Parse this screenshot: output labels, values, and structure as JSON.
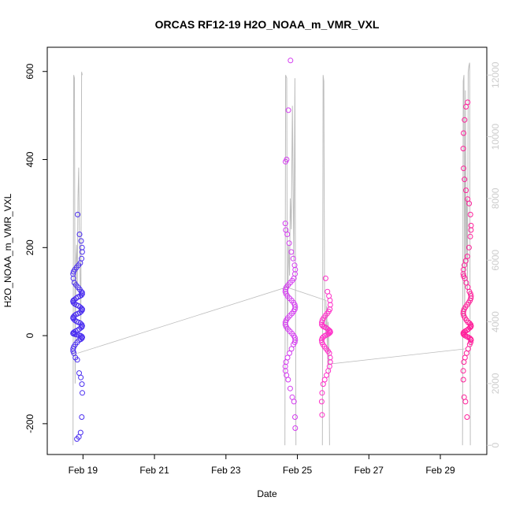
{
  "chart_data": {
    "type": "scatter",
    "title": "ORCAS RF12-19 H2O_NOAA_m_VMR_VXL",
    "xlabel": "Date",
    "ylabel": "H2O_NOAA_m_VMR_VXL",
    "x_tick_labels": [
      "Feb 19",
      "Feb 21",
      "Feb 23",
      "Feb 25",
      "Feb 27",
      "Feb 29"
    ],
    "x_ticks_days": [
      19,
      21,
      23,
      25,
      27,
      29
    ],
    "xlim_days": [
      18.0,
      30.3
    ],
    "ylim": [
      -270,
      655
    ],
    "y_ticks": [
      -200,
      0,
      200,
      400,
      600
    ],
    "y2_ticks": [
      0,
      2000,
      4000,
      6000,
      8000,
      10000,
      12000
    ],
    "y2lim": [
      -300,
      12900
    ],
    "grid": false,
    "colors": {
      "flight1": "#4b2ff0",
      "flight2": "#d43cf0",
      "flight3": "#ff2fc8",
      "flight4": "#ff1f9a",
      "altitude_line": "#bdbdbd",
      "axis": "#000000",
      "right_axis": "#cccccc"
    },
    "flights": [
      {
        "date_center": 18.85,
        "spread": 0.13,
        "color": "#4b2ff0",
        "points": [
          275,
          230,
          215,
          200,
          190,
          175,
          165,
          160,
          155,
          150,
          145,
          140,
          130,
          120,
          115,
          110,
          105,
          100,
          98,
          95,
          92,
          90,
          88,
          85,
          82,
          80,
          78,
          75,
          72,
          70,
          68,
          65,
          62,
          60,
          58,
          55,
          52,
          50,
          48,
          45,
          42,
          40,
          38,
          35,
          32,
          30,
          28,
          25,
          22,
          20,
          18,
          15,
          12,
          10,
          8,
          6,
          5,
          4,
          3,
          2,
          1,
          0,
          -2,
          -4,
          -6,
          -8,
          -10,
          -15,
          -20,
          -25,
          -30,
          -35,
          -40,
          -50,
          -55,
          -85,
          -95,
          -110,
          -130,
          -185,
          -220,
          -230,
          -235
        ],
        "altitude_x": [
          18.72,
          18.74,
          18.76,
          18.78,
          18.8,
          18.82,
          18.84,
          18.86,
          18.88,
          18.9,
          18.92,
          18.94,
          18.96,
          18.98
        ],
        "altitude_y": [
          0,
          12000,
          11900,
          2000,
          6000,
          6500,
          5000,
          8000,
          9000,
          7000,
          5500,
          4000,
          12100,
          12000
        ]
      },
      {
        "date_center": 24.8,
        "spread": 0.14,
        "color": "#d43cf0",
        "points": [
          625,
          512,
          400,
          395,
          255,
          240,
          230,
          210,
          190,
          175,
          160,
          150,
          140,
          130,
          125,
          120,
          115,
          110,
          105,
          100,
          95,
          90,
          85,
          80,
          75,
          70,
          65,
          60,
          55,
          50,
          45,
          40,
          35,
          30,
          25,
          20,
          15,
          10,
          5,
          0,
          -5,
          -10,
          -15,
          -20,
          -30,
          -40,
          -50,
          -60,
          -70,
          -80,
          -90,
          -100,
          -120,
          -140,
          -150,
          -185,
          -210
        ],
        "altitude_x": [
          24.65,
          24.67,
          24.7,
          24.72,
          24.75,
          24.78,
          24.8,
          24.83,
          24.86,
          24.9,
          24.93,
          24.96
        ],
        "altitude_y": [
          0,
          12000,
          11900,
          3000,
          6500,
          5500,
          8000,
          7000,
          11000,
          6000,
          11900,
          0
        ]
      },
      {
        "date_center": 25.8,
        "spread": 0.12,
        "color": "#ff2fc8",
        "points": [
          130,
          100,
          90,
          80,
          70,
          60,
          55,
          50,
          45,
          40,
          35,
          30,
          25,
          22,
          20,
          18,
          15,
          12,
          10,
          8,
          6,
          4,
          2,
          0,
          -3,
          -6,
          -10,
          -15,
          -20,
          -25,
          -30,
          -35,
          -40,
          -50,
          -60,
          -70,
          -80,
          -90,
          -100,
          -110,
          -130,
          -150,
          -180
        ],
        "altitude_x": [
          25.7,
          25.72,
          25.74,
          25.76,
          25.78,
          25.8,
          25.82,
          25.84,
          25.86,
          25.88,
          25.9
        ],
        "altitude_y": [
          0,
          12000,
          11800,
          5000,
          4000,
          3500,
          4500,
          3000,
          4000,
          3200,
          0
        ]
      },
      {
        "date_center": 29.75,
        "spread": 0.11,
        "color": "#ff1f9a",
        "points": [
          530,
          520,
          490,
          460,
          425,
          380,
          355,
          330,
          310,
          300,
          275,
          250,
          240,
          225,
          200,
          180,
          170,
          160,
          150,
          140,
          135,
          130,
          120,
          110,
          100,
          95,
          90,
          85,
          80,
          75,
          70,
          65,
          60,
          55,
          50,
          45,
          40,
          35,
          30,
          28,
          25,
          22,
          20,
          18,
          15,
          12,
          10,
          8,
          6,
          4,
          2,
          0,
          -2,
          -4,
          -6,
          -8,
          -10,
          -15,
          -20,
          -30,
          -40,
          -50,
          -60,
          -80,
          -100,
          -140,
          -150,
          -185
        ],
        "altitude_x": [
          29.62,
          29.64,
          29.66,
          29.68,
          29.7,
          29.72,
          29.74,
          29.76,
          29.78,
          29.8,
          29.82,
          29.84
        ],
        "altitude_y": [
          0,
          11800,
          12000,
          4000,
          11500,
          6000,
          8000,
          5000,
          12100,
          12300,
          12400,
          0
        ]
      }
    ],
    "connector_points": [
      [
        18.85,
        -40
      ],
      [
        24.7,
        110
      ],
      [
        25.8,
        80
      ],
      [
        25.85,
        -65
      ],
      [
        29.7,
        -30
      ]
    ]
  }
}
